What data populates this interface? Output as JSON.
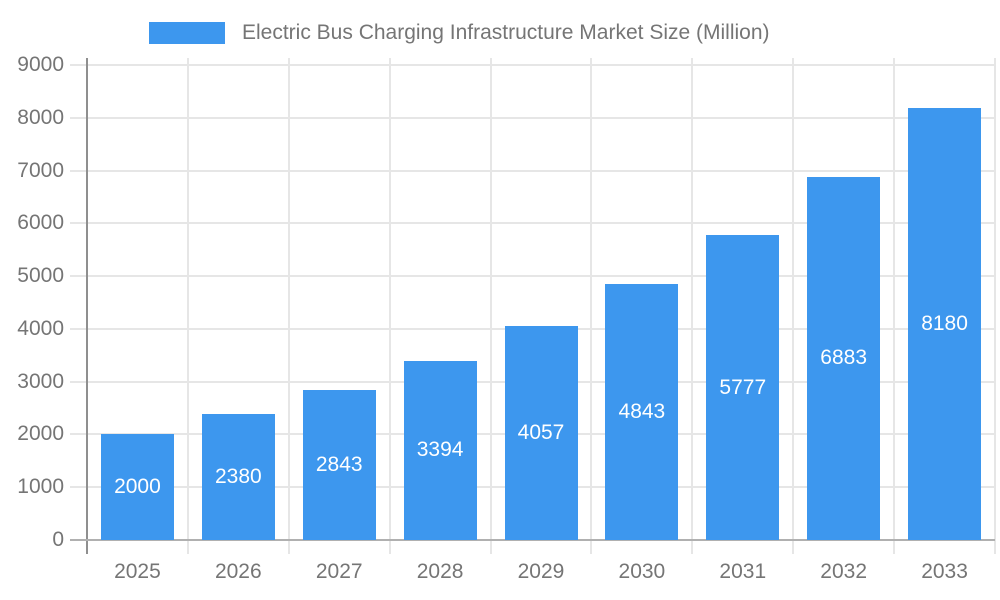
{
  "chart_data": {
    "type": "bar",
    "title": "Electric Bus Charging Infrastructure Market Size (Million)",
    "categories": [
      "2025",
      "2026",
      "2027",
      "2028",
      "2029",
      "2030",
      "2031",
      "2032",
      "2033"
    ],
    "values": [
      2000,
      2380,
      2843,
      3394,
      4057,
      4843,
      5777,
      6883,
      8180
    ],
    "series_name": "Electric Bus Charging Infrastructure Market Size (Million)",
    "xlabel": "",
    "ylabel": "",
    "ylim": [
      0,
      9000
    ],
    "yticks": [
      0,
      1000,
      2000,
      3000,
      4000,
      5000,
      6000,
      7000,
      8000,
      9000
    ],
    "grid": true,
    "legend_position": "top",
    "bar_color": "#3d97ee",
    "bar_label_color": "#ffffff",
    "axis_text_color": "#757575",
    "gridline_color": "#e6e6e6",
    "baseline_color": "#b0b0b0",
    "yaxis_line_color": "#8f8f8f",
    "background_color": "#ffffff"
  }
}
